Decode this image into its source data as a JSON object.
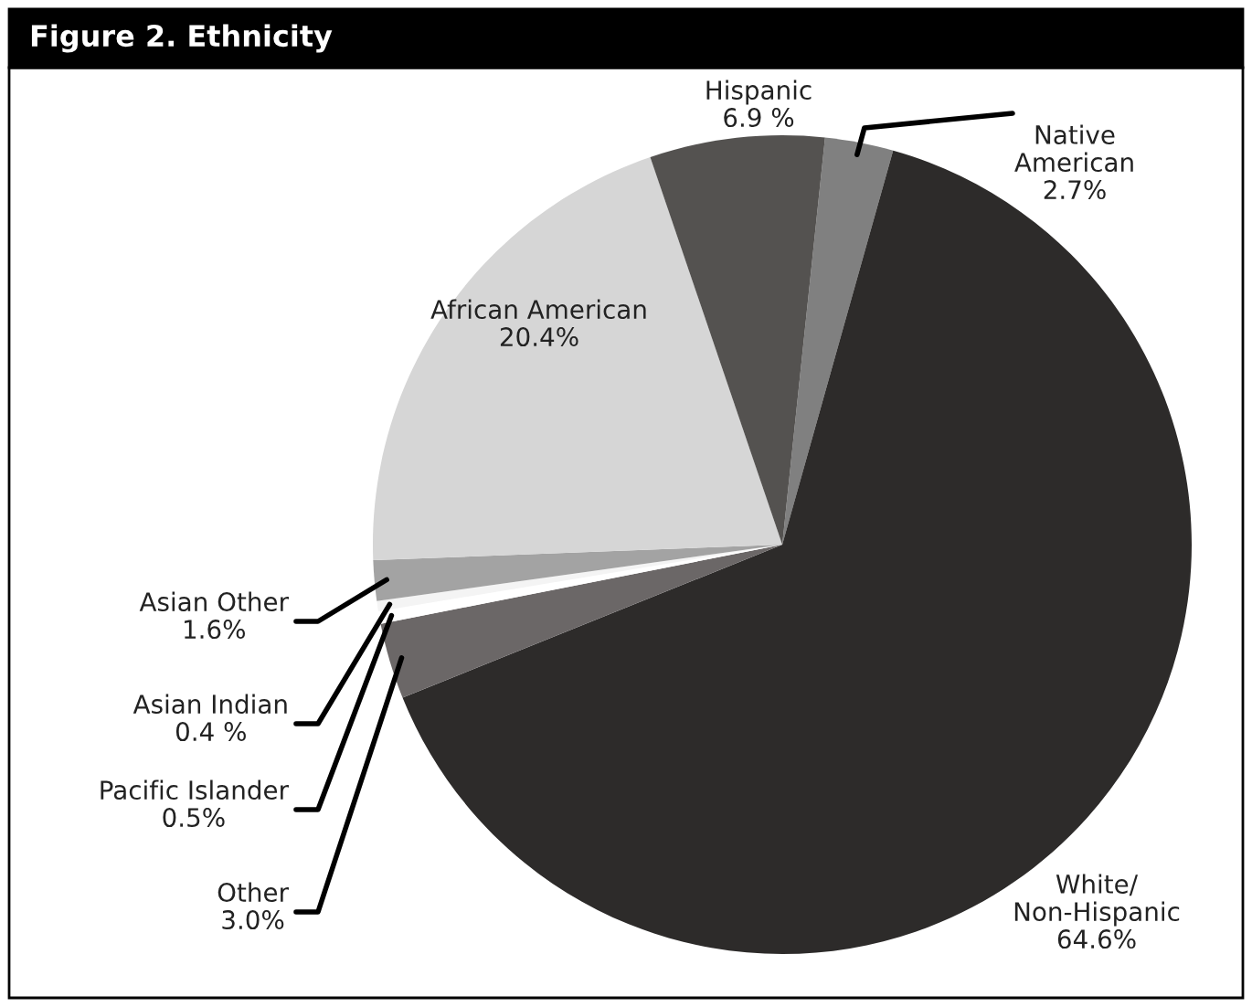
{
  "chart_data": {
    "type": "pie",
    "title": "Figure 2. Ethnicity",
    "categories": [
      "Native\nAmerican",
      "White/\nNon-Hispanic",
      "Other",
      "Pacific Islander",
      "Asian Indian",
      "Asian Other",
      "African American",
      "Hispanic"
    ],
    "values": [
      2.7,
      64.6,
      3.0,
      0.5,
      0.4,
      1.6,
      20.4,
      6.9
    ],
    "value_labels": [
      "2.7%",
      "64.6%",
      "3.0%",
      "0.5%",
      "0.4 %",
      "1.6%",
      "20.4%",
      "6.9 %"
    ],
    "colors": [
      "#808080",
      "#2d2b2a",
      "#6b6767",
      "#ffffff",
      "#f4f4f4",
      "#a3a3a3",
      "#d6d6d6",
      "#545250"
    ]
  }
}
